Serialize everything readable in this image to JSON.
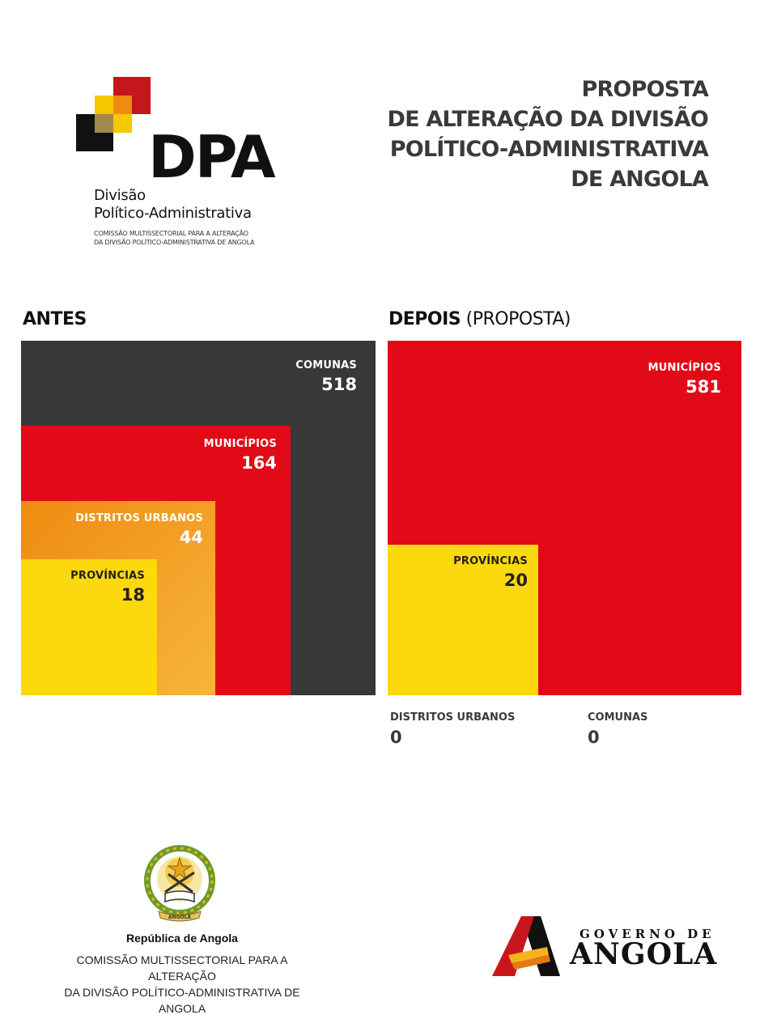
{
  "logo": {
    "acronym": "DPA",
    "line1": "Divisão",
    "line2": "Político-Administrativa",
    "small1": "COMISSÃO MULTISSECTORIAL PARA A ALTERAÇÃO",
    "small2": "DA DIVISÃO POLÍTICO-ADMINISTRATIVA DE ANGOLA"
  },
  "title": {
    "line1": "PROPOSTA",
    "line2": "DE ALTERAÇÃO DA DIVISÃO",
    "line3": "POLÍTICO-ADMINISTRATIVA",
    "line4": "DE ANGOLA"
  },
  "antes": {
    "label": "ANTES",
    "items": [
      {
        "name": "COMUNAS",
        "value": "518",
        "color": "#383838"
      },
      {
        "name": "MUNICÍPIOS",
        "value": "164",
        "color": "#e20a16"
      },
      {
        "name": "DISTRITOS URBANOS",
        "value": "44",
        "color": "#f29a1e"
      },
      {
        "name": "PROVÍNCIAS",
        "value": "18",
        "color": "#fcd80f"
      }
    ]
  },
  "depois": {
    "label": "DEPOIS",
    "label_extra": "(PROPOSTA)",
    "items": [
      {
        "name": "MUNICÍPIOS",
        "value": "581",
        "color": "#e20a16"
      },
      {
        "name": "PROVÍNCIAS",
        "value": "20",
        "color": "#fcd80f"
      }
    ],
    "zero_items": [
      {
        "name": "DISTRITOS URBANOS",
        "value": "0"
      },
      {
        "name": "COMUNAS",
        "value": "0"
      }
    ]
  },
  "footer": {
    "republic": "República de Angola",
    "emblem_text": "ANGOLA",
    "commission_line1": "COMISSÃO MULTISSECTORIAL PARA A ALTERAÇÃO",
    "commission_line2": "DA DIVISÃO POLÍTICO-ADMINISTRATIVA DE ANGOLA",
    "gov_small": "GOVERNO DE",
    "gov_big": "ANGOLA"
  }
}
